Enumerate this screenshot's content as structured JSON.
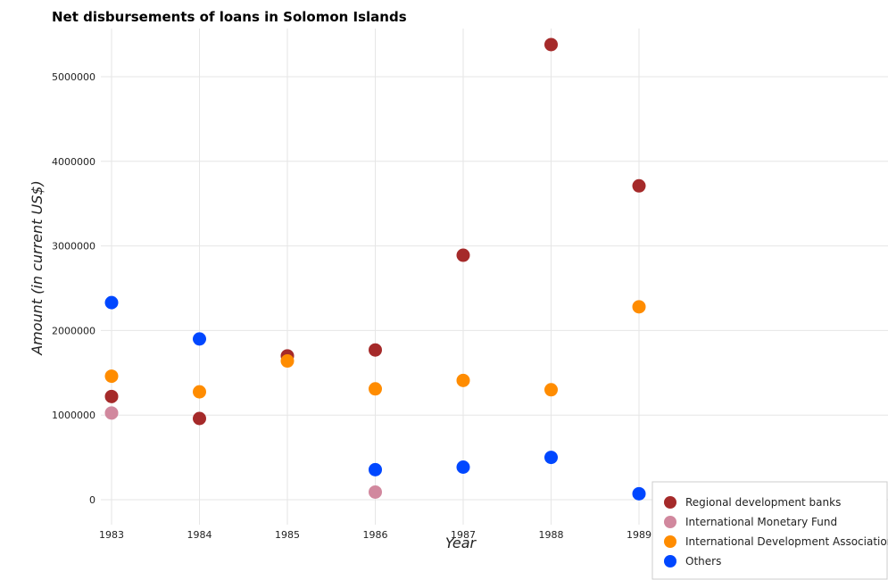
{
  "chart_data": {
    "type": "scatter",
    "title": "Net disbursements of loans in Solomon Islands",
    "xlabel": "Year",
    "ylabel": "Amount (in current US$)",
    "x": [
      "1983",
      "1984",
      "1985",
      "1986",
      "1987",
      "1988",
      "1989"
    ],
    "ylim": [
      0,
      5800000
    ],
    "yticks": [
      0,
      1000000,
      2000000,
      3000000,
      4000000,
      5000000
    ],
    "ytick_labels": [
      "0",
      "1000000",
      "2000000",
      "3000000",
      "4000000",
      "5000000"
    ],
    "grid": true,
    "legend_position": "bottom-right",
    "series": [
      {
        "name": "Regional development banks",
        "color": "#a52a2a",
        "values": [
          1220000,
          960000,
          1700000,
          1770000,
          2890000,
          5380000,
          3710000
        ]
      },
      {
        "name": "International Monetary Fund",
        "color": "#d1889e",
        "values": [
          1025000,
          null,
          null,
          90000,
          null,
          null,
          null
        ]
      },
      {
        "name": "International Development Association",
        "color": "#ff8c00",
        "values": [
          1460000,
          1275000,
          1640000,
          1310000,
          1410000,
          1300000,
          2280000
        ]
      },
      {
        "name": "Others",
        "color": "#0047ff",
        "values": [
          2330000,
          1900000,
          null,
          355000,
          385000,
          500000,
          70000
        ]
      }
    ]
  }
}
